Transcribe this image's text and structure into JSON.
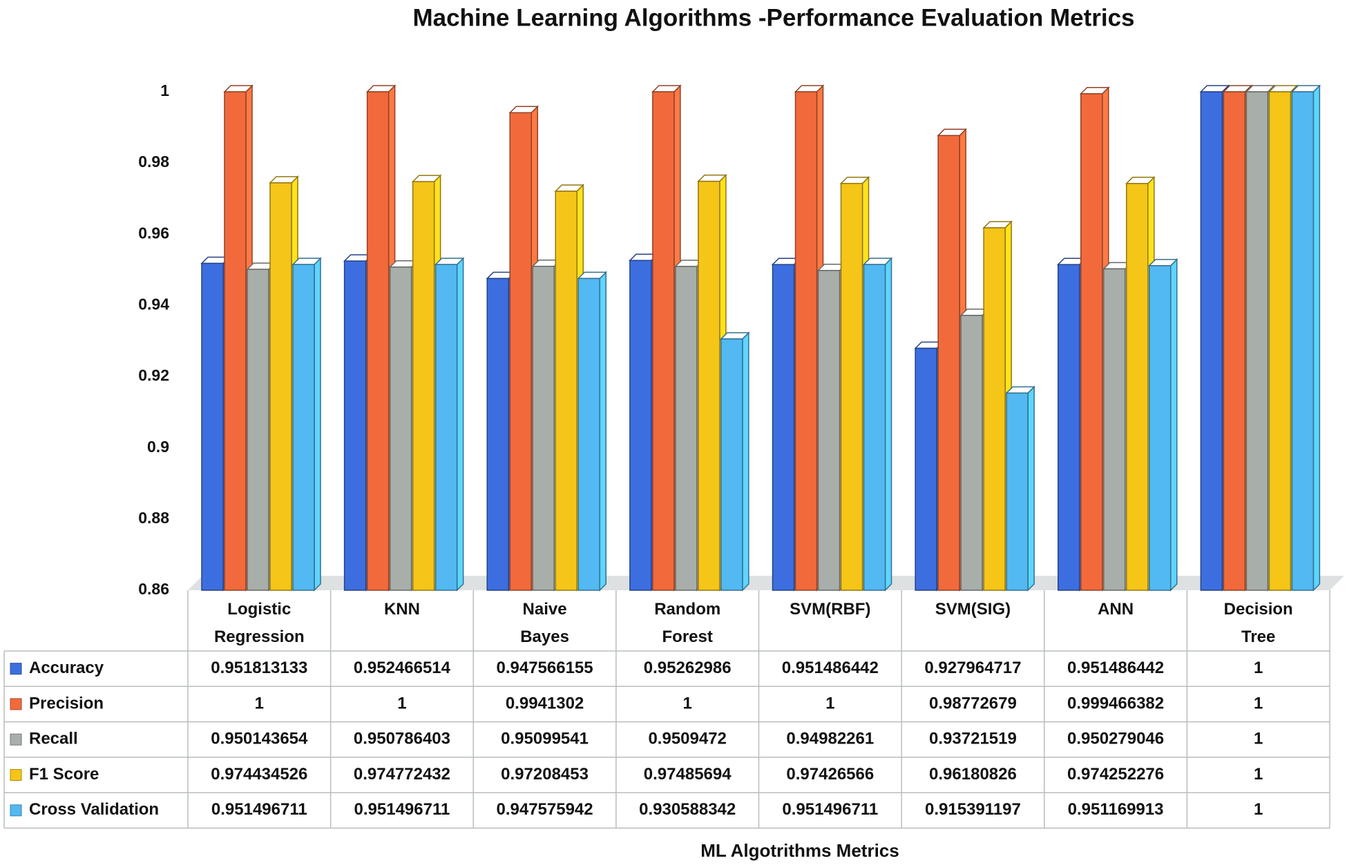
{
  "chart_data": {
    "type": "bar",
    "title": "Machine Learning Algorithms -Performance Evaluation Metrics",
    "x_label": "ML Algotrithms Metrics",
    "categories": [
      "Logistic Regression",
      "KNN",
      "Naive Bayes",
      "Random Forest",
      "SVM(RBF)",
      "SVM(SIG)",
      "ANN",
      "Decision Tree"
    ],
    "series": [
      {
        "name": "Accuracy",
        "color": "#3d6ee0",
        "values": [
          0.951813133,
          0.952466514,
          0.947566155,
          0.95262986,
          0.951486442,
          0.927964717,
          0.951486442,
          1
        ]
      },
      {
        "name": "Precision",
        "color": "#f26a3b",
        "values": [
          1,
          1,
          0.9941302,
          1,
          1,
          0.98772679,
          0.999466382,
          1
        ]
      },
      {
        "name": "Recall",
        "color": "#a8aeaa",
        "values": [
          0.950143654,
          0.950786403,
          0.95099541,
          0.9509472,
          0.94982261,
          0.93721519,
          0.950279046,
          1
        ]
      },
      {
        "name": "F1 Score",
        "color": "#f5c518",
        "values": [
          0.974434526,
          0.974772432,
          0.97208453,
          0.97485694,
          0.97426566,
          0.96180826,
          0.974252276,
          1
        ]
      },
      {
        "name": "Cross Validation",
        "color": "#52b9f3",
        "values": [
          0.951496711,
          0.951496711,
          0.947575942,
          0.930588342,
          0.951496711,
          0.915391197,
          0.951169913,
          1
        ]
      }
    ],
    "ylim": [
      0.86,
      1
    ],
    "yticks": [
      0.86,
      0.88,
      0.9,
      0.92,
      0.94,
      0.96,
      0.98,
      1
    ],
    "grid": false,
    "data_table": true
  }
}
